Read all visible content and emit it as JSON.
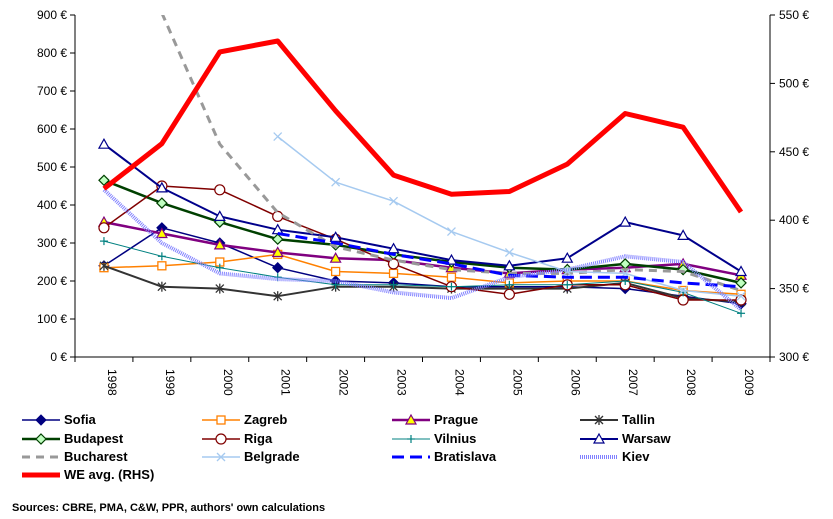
{
  "chart_data": {
    "type": "line",
    "title": "",
    "x": [
      "1998",
      "1999",
      "2000",
      "2001",
      "2002",
      "2003",
      "2004",
      "2005",
      "2006",
      "2007",
      "2008",
      "2009"
    ],
    "y_left": {
      "ylim": [
        0,
        900
      ],
      "ticks": [
        "0 €",
        "100 €",
        "200 €",
        "300 €",
        "400 €",
        "500 €",
        "600 €",
        "700 €",
        "800 €",
        "900 €"
      ]
    },
    "y_right": {
      "ylim": [
        300,
        550
      ],
      "ticks": [
        "300 €",
        "350 €",
        "400 €",
        "450 €",
        "500 €",
        "550 €"
      ]
    },
    "grid": false,
    "legend_position": "bottom",
    "series": [
      {
        "name": "Sofia",
        "color": "#000080",
        "marker": "diamond",
        "axis": "left",
        "values": [
          240,
          340,
          300,
          235,
          200,
          195,
          185,
          185,
          185,
          180,
          160,
          140
        ]
      },
      {
        "name": "Zagreb",
        "color": "#ff8000",
        "marker": "square",
        "axis": "left",
        "values": [
          235,
          240,
          250,
          270,
          225,
          220,
          210,
          195,
          200,
          200,
          175,
          165
        ]
      },
      {
        "name": "Prague",
        "color": "#800080",
        "marker": "triangle",
        "axis": "left",
        "values": [
          355,
          325,
          295,
          275,
          260,
          255,
          235,
          220,
          230,
          235,
          245,
          215
        ]
      },
      {
        "name": "Tallin",
        "color": "#333333",
        "marker": "asterisk",
        "axis": "left",
        "values": [
          240,
          185,
          180,
          160,
          185,
          185,
          180,
          180,
          180,
          195,
          155,
          145
        ]
      },
      {
        "name": "Budapest",
        "color": "#004000",
        "marker": "diamond-open",
        "axis": "left",
        "values": [
          465,
          405,
          355,
          310,
          295,
          270,
          250,
          235,
          230,
          245,
          230,
          195
        ]
      },
      {
        "name": "Riga",
        "color": "#800000",
        "marker": "circle",
        "axis": "left",
        "values": [
          340,
          450,
          440,
          370,
          310,
          245,
          185,
          165,
          190,
          190,
          150,
          150
        ]
      },
      {
        "name": "Vilnius",
        "color": "#008080",
        "marker": "plus",
        "axis": "left",
        "values": [
          305,
          265,
          235,
          210,
          190,
          190,
          185,
          190,
          190,
          200,
          170,
          115
        ]
      },
      {
        "name": "Warsaw",
        "color": "#00008b",
        "marker": "triangle-open",
        "axis": "left",
        "values": [
          560,
          445,
          370,
          335,
          315,
          285,
          255,
          240,
          260,
          355,
          320,
          225
        ]
      },
      {
        "name": "Bucharest",
        "color": "#999999",
        "marker": "none",
        "axis": "left",
        "values": [
          null,
          905,
          560,
          380,
          290,
          255,
          230,
          220,
          220,
          230,
          225,
          175
        ]
      },
      {
        "name": "Belgrade",
        "color": "#a6caf0",
        "marker": "x",
        "axis": "left",
        "values": [
          null,
          null,
          null,
          580,
          460,
          410,
          330,
          275,
          225,
          220,
          175,
          160
        ]
      },
      {
        "name": "Bratislava",
        "color": "#0000ff",
        "marker": "none",
        "axis": "left",
        "values": [
          null,
          null,
          null,
          325,
          300,
          270,
          245,
          215,
          210,
          210,
          195,
          185
        ]
      },
      {
        "name": "Kiev",
        "color": "#8080ff",
        "marker": "none",
        "axis": "left",
        "values": [
          440,
          300,
          220,
          205,
          200,
          170,
          155,
          210,
          230,
          265,
          250,
          125
        ]
      },
      {
        "name": "WE avg. (RHS)",
        "color": "#ff0000",
        "marker": "none",
        "axis": "right",
        "values": [
          423,
          456,
          523,
          531,
          480,
          433,
          419,
          421,
          441,
          478,
          468,
          406
        ]
      }
    ],
    "source": "Sources: CBRE, PMA, C&W, PPR, authors' own calculations"
  }
}
